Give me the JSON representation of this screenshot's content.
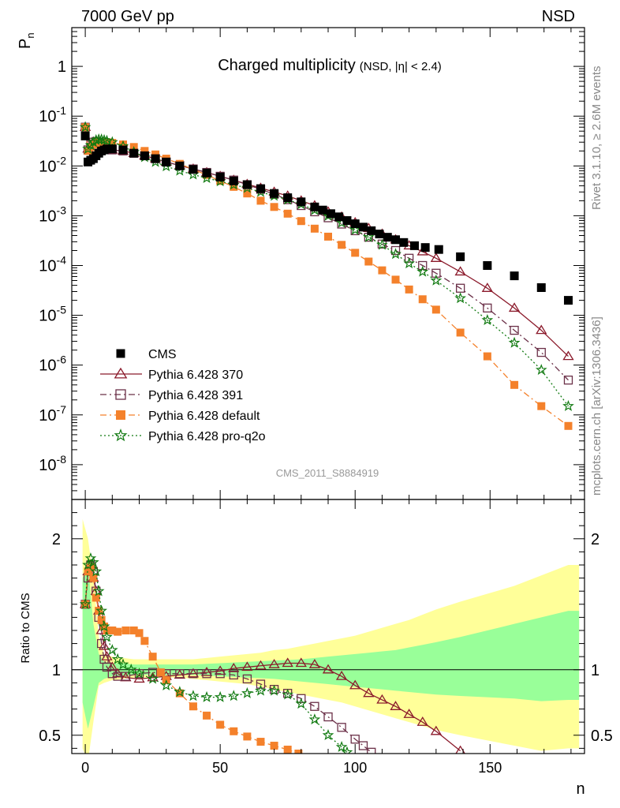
{
  "header": {
    "left": "7000 GeV pp",
    "right": "NSD"
  },
  "title_main": "Charged multiplicity",
  "title_sub": "(NSD, |η| < 2.4)",
  "analysis_id": "CMS_2011_S8884919",
  "side_text_top": "Rivet 3.1.10, ≥ 2.6M events",
  "side_text_bottom": "mcplots.cern.ch [arXiv:1306.3436]",
  "colors": {
    "CMS": "#000000",
    "370": "#8b1a2b",
    "391": "#6b3048",
    "default": "#f4812b",
    "proq2o": "#117a11",
    "band_outer": "#ffff99",
    "band_inner": "#99ff99"
  },
  "chart_data": [
    {
      "type": "scatter",
      "ylabel": "P_n",
      "yscale": "log",
      "ylim": [
        2e-09,
        6
      ],
      "xlim": [
        -5,
        185
      ],
      "y_ticks": [
        "1",
        "10^-1",
        "10^-2",
        "10^-3",
        "10^-4",
        "10^-5",
        "10^-6",
        "10^-7",
        "10^-8"
      ],
      "legend_position": "lower-left",
      "series": [
        {
          "name": "CMS",
          "marker": "filled-square",
          "x": [
            0,
            1,
            2,
            3,
            4,
            5,
            6,
            7,
            8,
            10,
            14,
            18,
            22,
            26,
            30,
            35,
            40,
            45,
            50,
            55,
            60,
            65,
            70,
            75,
            80,
            85,
            88,
            91,
            94,
            97,
            100,
            103,
            106,
            109,
            112,
            115,
            118,
            122,
            126,
            131,
            139,
            149,
            159,
            169,
            179
          ],
          "y": [
            0.04,
            0.012,
            0.013,
            0.014,
            0.016,
            0.018,
            0.02,
            0.021,
            0.022,
            0.022,
            0.021,
            0.018,
            0.016,
            0.014,
            0.012,
            0.01,
            0.0085,
            0.0072,
            0.006,
            0.005,
            0.0042,
            0.0035,
            0.0028,
            0.0023,
            0.0019,
            0.0015,
            0.0013,
            0.0011,
            0.00095,
            0.0008,
            0.00069,
            0.00059,
            0.0005,
            0.00043,
            0.00037,
            0.00033,
            0.00029,
            0.00025,
            0.00023,
            0.00021,
            0.00015,
            0.0001,
            6.2e-05,
            3.6e-05,
            2e-05
          ]
        },
        {
          "name": "Pythia 6.428 370",
          "marker": "open-triangle",
          "line": "solid",
          "x": [
            0,
            1,
            2,
            3,
            4,
            5,
            6,
            7,
            8,
            10,
            14,
            18,
            22,
            26,
            30,
            35,
            40,
            45,
            50,
            55,
            60,
            65,
            70,
            75,
            80,
            85,
            90,
            95,
            100,
            105,
            110,
            115,
            120,
            125,
            130,
            139,
            149,
            159,
            169,
            179
          ],
          "y": [
            0.06,
            0.022,
            0.027,
            0.03,
            0.03,
            0.028,
            0.025,
            0.023,
            0.022,
            0.021,
            0.02,
            0.018,
            0.016,
            0.014,
            0.012,
            0.0102,
            0.0087,
            0.0074,
            0.0062,
            0.0052,
            0.0043,
            0.0036,
            0.003,
            0.0025,
            0.002,
            0.0016,
            0.0012,
            0.00095,
            0.00073,
            0.00056,
            0.00043,
            0.00033,
            0.00025,
            0.00019,
            0.00014,
            7.5e-05,
            3.5e-05,
            1.4e-05,
            5e-06,
            1.5e-06
          ]
        },
        {
          "name": "Pythia 6.428 391",
          "marker": "open-square",
          "line": "dash-dot",
          "x": [
            0,
            1,
            2,
            3,
            4,
            5,
            6,
            7,
            8,
            10,
            14,
            18,
            22,
            26,
            30,
            35,
            40,
            45,
            50,
            55,
            60,
            65,
            70,
            75,
            80,
            85,
            90,
            95,
            100,
            105,
            110,
            115,
            120,
            125,
            130,
            139,
            149,
            159,
            169,
            179
          ],
          "y": [
            0.06,
            0.021,
            0.026,
            0.03,
            0.031,
            0.03,
            0.027,
            0.025,
            0.023,
            0.021,
            0.02,
            0.018,
            0.016,
            0.014,
            0.012,
            0.0102,
            0.0087,
            0.0074,
            0.0062,
            0.0052,
            0.0042,
            0.0034,
            0.0027,
            0.0021,
            0.0016,
            0.0012,
            0.00091,
            0.00068,
            0.0005,
            0.00037,
            0.00027,
            0.0002,
            0.00014,
            0.0001,
            7e-05,
            3.5e-05,
            1.4e-05,
            5e-06,
            1.8e-06,
            5e-07
          ]
        },
        {
          "name": "Pythia 6.428 default",
          "marker": "filled-square",
          "line": "dash-dot",
          "x": [
            0,
            1,
            2,
            3,
            4,
            5,
            6,
            7,
            8,
            10,
            14,
            18,
            22,
            26,
            30,
            35,
            40,
            45,
            50,
            55,
            60,
            65,
            70,
            75,
            80,
            85,
            90,
            95,
            100,
            105,
            110,
            115,
            120,
            125,
            130,
            139,
            149,
            159,
            169,
            179
          ],
          "y": [
            0.06,
            0.02,
            0.024,
            0.027,
            0.029,
            0.03,
            0.03,
            0.03,
            0.03,
            0.029,
            0.027,
            0.024,
            0.02,
            0.017,
            0.014,
            0.011,
            0.0085,
            0.0066,
            0.005,
            0.0038,
            0.0028,
            0.002,
            0.0015,
            0.0011,
            0.00078,
            0.00055,
            0.00038,
            0.00026,
            0.00018,
            0.00012,
            8e-05,
            5.2e-05,
            3.3e-05,
            2.1e-05,
            1.3e-05,
            4.5e-06,
            1.5e-06,
            4e-07,
            1.5e-07,
            6e-08
          ]
        },
        {
          "name": "Pythia 6.428 pro-q2o",
          "marker": "open-star",
          "line": "dotted",
          "x": [
            0,
            1,
            2,
            3,
            4,
            5,
            6,
            7,
            8,
            10,
            14,
            18,
            22,
            26,
            30,
            35,
            40,
            45,
            50,
            55,
            60,
            65,
            70,
            75,
            80,
            85,
            90,
            95,
            100,
            105,
            110,
            115,
            120,
            125,
            130,
            139,
            149,
            159,
            169,
            179
          ],
          "y": [
            0.06,
            0.022,
            0.026,
            0.03,
            0.033,
            0.034,
            0.034,
            0.033,
            0.032,
            0.03,
            0.025,
            0.019,
            0.015,
            0.012,
            0.0098,
            0.008,
            0.0067,
            0.0057,
            0.0049,
            0.0042,
            0.0036,
            0.003,
            0.0025,
            0.0021,
            0.0017,
            0.0013,
            0.00099,
            0.00072,
            0.00052,
            0.00037,
            0.00026,
            0.00017,
            0.00011,
            7.5e-05,
            5e-05,
            2.2e-05,
            8e-06,
            2.8e-06,
            8e-07,
            1.5e-07
          ]
        }
      ]
    },
    {
      "type": "line",
      "xlabel": "n",
      "ylabel": "Ratio to CMS",
      "ylim": [
        0.36,
        2.3
      ],
      "xlim": [
        -5,
        185
      ],
      "x_ticks": [
        0,
        50,
        100,
        150
      ],
      "y_ticks": [
        0.5,
        1,
        2
      ],
      "reference_line": 1,
      "band_outer": {
        "x": [
          -1,
          1,
          3,
          5,
          7,
          10,
          14,
          18,
          22,
          26,
          30,
          35,
          40,
          45,
          50,
          55,
          60,
          65,
          70,
          75,
          80,
          85,
          90,
          95,
          100,
          105,
          110,
          115,
          120,
          125,
          130,
          139,
          149,
          159,
          169,
          179,
          183
        ],
        "lo": [
          0.4,
          0.3,
          0.6,
          0.88,
          0.9,
          0.92,
          0.93,
          0.94,
          0.94,
          0.94,
          0.94,
          0.94,
          0.93,
          0.92,
          0.91,
          0.9,
          0.89,
          0.87,
          0.85,
          0.83,
          0.81,
          0.79,
          0.77,
          0.75,
          0.72,
          0.69,
          0.66,
          0.63,
          0.6,
          0.57,
          0.54,
          0.5,
          0.46,
          0.42,
          0.38,
          0.4,
          0.4
        ],
        "hi": [
          2.15,
          2.0,
          1.7,
          1.25,
          1.12,
          1.1,
          1.09,
          1.08,
          1.08,
          1.08,
          1.08,
          1.08,
          1.08,
          1.09,
          1.1,
          1.11,
          1.12,
          1.13,
          1.15,
          1.16,
          1.18,
          1.2,
          1.22,
          1.24,
          1.26,
          1.29,
          1.32,
          1.35,
          1.38,
          1.42,
          1.46,
          1.52,
          1.58,
          1.64,
          1.72,
          1.8,
          1.8
        ]
      },
      "band_inner": {
        "x": [
          -1,
          1,
          3,
          5,
          7,
          10,
          14,
          18,
          22,
          26,
          30,
          35,
          40,
          45,
          50,
          55,
          60,
          65,
          70,
          75,
          80,
          85,
          90,
          95,
          100,
          105,
          110,
          115,
          120,
          125,
          130,
          139,
          149,
          159,
          169,
          179,
          183
        ],
        "lo": [
          0.75,
          0.55,
          0.72,
          0.9,
          0.93,
          0.95,
          0.95,
          0.96,
          0.96,
          0.96,
          0.96,
          0.96,
          0.96,
          0.955,
          0.95,
          0.945,
          0.94,
          0.935,
          0.93,
          0.92,
          0.91,
          0.9,
          0.89,
          0.88,
          0.87,
          0.86,
          0.85,
          0.84,
          0.83,
          0.82,
          0.81,
          0.8,
          0.79,
          0.78,
          0.76,
          0.77,
          0.77
        ],
        "hi": [
          1.7,
          1.8,
          1.35,
          1.12,
          1.06,
          1.05,
          1.05,
          1.04,
          1.04,
          1.04,
          1.04,
          1.04,
          1.04,
          1.045,
          1.05,
          1.055,
          1.06,
          1.065,
          1.07,
          1.075,
          1.08,
          1.09,
          1.1,
          1.11,
          1.12,
          1.13,
          1.14,
          1.15,
          1.17,
          1.19,
          1.21,
          1.25,
          1.3,
          1.35,
          1.4,
          1.45,
          1.45
        ]
      },
      "series": [
        {
          "name": "Pythia 6.428 370",
          "x": [
            0,
            1,
            2,
            3,
            4,
            5,
            6,
            7,
            8,
            10,
            12,
            15,
            20,
            25,
            30,
            35,
            40,
            45,
            50,
            55,
            60,
            65,
            70,
            75,
            80,
            85,
            90,
            95,
            100,
            105,
            110,
            115,
            120,
            125,
            130,
            139
          ],
          "y": [
            1.5,
            1.75,
            1.8,
            1.7,
            1.6,
            1.45,
            1.3,
            1.18,
            1.1,
            1.02,
            0.97,
            0.94,
            0.93,
            0.94,
            0.95,
            0.96,
            0.97,
            0.98,
            0.99,
            1.01,
            1.02,
            1.03,
            1.04,
            1.05,
            1.05,
            1.04,
            1.0,
            0.95,
            0.88,
            0.82,
            0.77,
            0.72,
            0.66,
            0.6,
            0.53,
            0.38
          ]
        },
        {
          "name": "Pythia 6.428 391",
          "x": [
            0,
            1,
            2,
            3,
            4,
            5,
            6,
            7,
            8,
            10,
            12,
            15,
            20,
            25,
            30,
            35,
            40,
            45,
            50,
            55,
            60,
            65,
            70,
            75,
            80,
            85,
            90,
            95,
            100,
            103,
            106
          ],
          "y": [
            1.5,
            1.7,
            1.8,
            1.75,
            1.6,
            1.4,
            1.2,
            1.08,
            1.02,
            0.97,
            0.95,
            0.95,
            0.97,
            0.98,
            0.97,
            0.97,
            0.97,
            0.97,
            0.97,
            0.96,
            0.93,
            0.89,
            0.85,
            0.82,
            0.78,
            0.72,
            0.64,
            0.56,
            0.47,
            0.42,
            0.37
          ]
        },
        {
          "name": "Pythia 6.428 default",
          "x": [
            0,
            1,
            2,
            3,
            4,
            5,
            6,
            7,
            8,
            10,
            12,
            15,
            18,
            20,
            22,
            25,
            28,
            30,
            35,
            40,
            45,
            50,
            55,
            60,
            65,
            70,
            75,
            79
          ],
          "y": [
            1.5,
            1.75,
            1.78,
            1.7,
            1.55,
            1.45,
            1.38,
            1.33,
            1.3,
            1.3,
            1.29,
            1.3,
            1.3,
            1.28,
            1.22,
            1.1,
            0.98,
            0.92,
            0.82,
            0.72,
            0.65,
            0.58,
            0.53,
            0.49,
            0.45,
            0.42,
            0.39,
            0.36
          ]
        },
        {
          "name": "Pythia 6.428 pro-q2o",
          "x": [
            0,
            1,
            2,
            3,
            4,
            5,
            6,
            7,
            8,
            10,
            12,
            14,
            17,
            20,
            25,
            30,
            35,
            40,
            45,
            50,
            55,
            60,
            65,
            70,
            75,
            80,
            85,
            90,
            95,
            97
          ],
          "y": [
            1.5,
            1.8,
            1.85,
            1.82,
            1.75,
            1.6,
            1.45,
            1.33,
            1.25,
            1.15,
            1.08,
            1.04,
            1.0,
            0.97,
            0.93,
            0.88,
            0.83,
            0.8,
            0.79,
            0.79,
            0.8,
            0.82,
            0.84,
            0.84,
            0.81,
            0.74,
            0.62,
            0.5,
            0.41,
            0.37
          ]
        }
      ]
    }
  ]
}
